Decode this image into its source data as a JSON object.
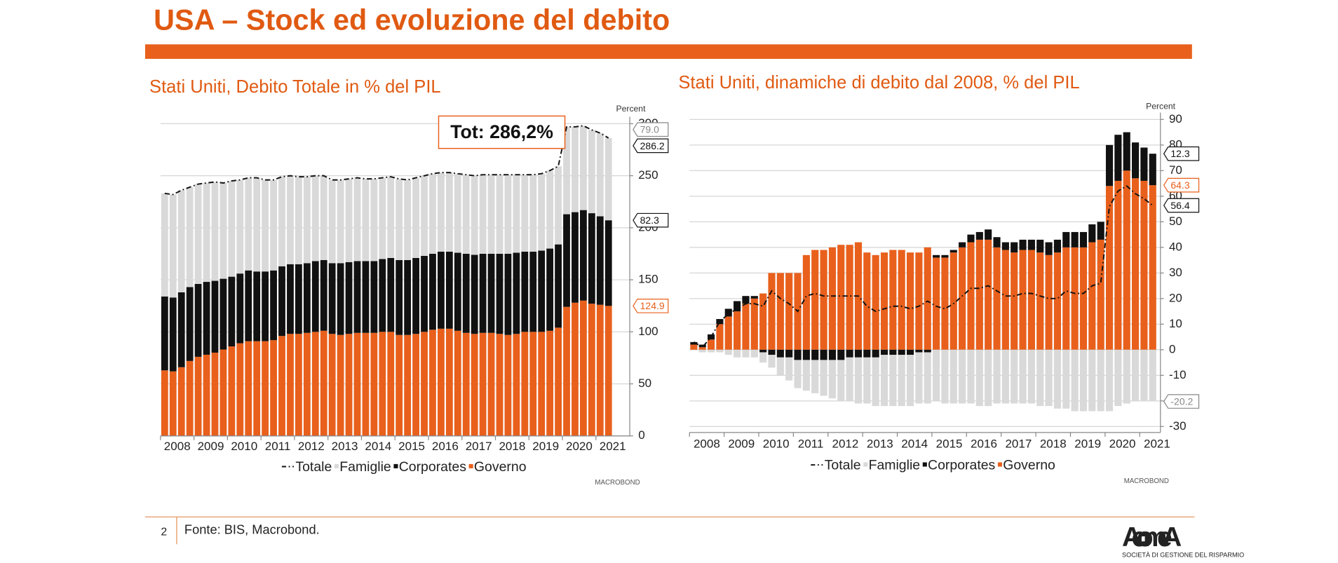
{
  "header": {
    "title": "USA – Stock ed evoluzione del debito"
  },
  "chart_data": [
    {
      "type": "bar",
      "stacked": true,
      "title": "Stati Uniti, Debito Totale in % del PIL",
      "y_axis_label": "Percent",
      "annotation": "Tot: 286,2%",
      "source_logo": "MACROBOND",
      "yaxis_side": "right",
      "grid": true,
      "categories": [
        null,
        "2008",
        null,
        null,
        null,
        "2009",
        null,
        null,
        null,
        "2010",
        null,
        null,
        null,
        "2011",
        null,
        null,
        null,
        "2012",
        null,
        null,
        null,
        "2013",
        null,
        null,
        null,
        "2014",
        null,
        null,
        null,
        "2015",
        null,
        null,
        null,
        "2016",
        null,
        null,
        null,
        "2017",
        null,
        null,
        null,
        "2018",
        null,
        null,
        null,
        "2019",
        null,
        null,
        null,
        "2020",
        null,
        null,
        null,
        "2021"
      ],
      "ylim": [
        0,
        300
      ],
      "yticks": [
        0,
        50,
        100,
        150,
        200,
        250,
        300
      ],
      "series": [
        {
          "name": "Totale",
          "type": "line",
          "color": "#111111",
          "values": [
            233,
            232,
            236,
            239,
            242,
            243,
            244,
            243,
            245,
            246,
            248,
            248,
            246,
            246,
            249,
            250,
            249,
            249,
            250,
            250,
            246,
            246,
            247,
            248,
            247,
            247,
            248,
            249,
            247,
            246,
            248,
            250,
            252,
            253,
            253,
            252,
            251,
            250,
            251,
            251,
            251,
            251,
            251,
            251,
            251,
            252,
            255,
            259,
            297,
            297,
            298,
            294,
            291,
            286.2
          ],
          "value_labels": [
            null,
            null,
            null,
            null,
            null,
            null,
            null,
            null,
            null,
            null,
            null,
            null,
            null,
            null,
            null,
            null,
            null,
            null,
            null,
            null,
            null,
            null,
            null,
            null,
            null,
            null,
            null,
            null,
            null,
            null,
            null,
            null,
            null,
            null,
            null,
            null,
            null,
            null,
            null,
            null,
            null,
            null,
            null,
            null,
            null,
            null,
            null,
            null,
            null,
            null,
            null,
            null,
            null,
            "286.2"
          ]
        },
        {
          "name": "Famiglie",
          "color": "#d9d9d9",
          "values": [
            99,
            99,
            98,
            96,
            96,
            95,
            95,
            92,
            92,
            90,
            89,
            90,
            88,
            87,
            86,
            85,
            84,
            83,
            82,
            81,
            80,
            80,
            80,
            80,
            79,
            79,
            78,
            78,
            78,
            77,
            77,
            77,
            77,
            76,
            76,
            76,
            76,
            76,
            76,
            76,
            76,
            76,
            75,
            74,
            74,
            74,
            75,
            75,
            84,
            82,
            81,
            80,
            80,
            79.0
          ],
          "value_labels": [
            null,
            null,
            null,
            null,
            null,
            null,
            null,
            null,
            null,
            null,
            null,
            null,
            null,
            null,
            null,
            null,
            null,
            null,
            null,
            null,
            null,
            null,
            null,
            null,
            null,
            null,
            null,
            null,
            null,
            null,
            null,
            null,
            null,
            null,
            null,
            null,
            null,
            null,
            null,
            null,
            null,
            null,
            null,
            null,
            null,
            null,
            null,
            null,
            null,
            null,
            null,
            null,
            null,
            "79.0"
          ]
        },
        {
          "name": "Corporates",
          "color": "#111111",
          "values": [
            71,
            71,
            72,
            71,
            70,
            70,
            69,
            68,
            67,
            67,
            68,
            67,
            67,
            67,
            67,
            67,
            67,
            67,
            68,
            68,
            68,
            69,
            69,
            69,
            69,
            69,
            70,
            71,
            72,
            72,
            73,
            73,
            73,
            74,
            74,
            75,
            76,
            76,
            76,
            76,
            77,
            78,
            78,
            77,
            77,
            78,
            79,
            80,
            89,
            87,
            87,
            87,
            85,
            82.3
          ],
          "value_labels": [
            null,
            null,
            null,
            null,
            null,
            null,
            null,
            null,
            null,
            null,
            null,
            null,
            null,
            null,
            null,
            null,
            null,
            null,
            null,
            null,
            null,
            null,
            null,
            null,
            null,
            null,
            null,
            null,
            null,
            null,
            null,
            null,
            null,
            null,
            null,
            null,
            null,
            null,
            null,
            null,
            null,
            null,
            null,
            null,
            null,
            null,
            null,
            null,
            null,
            null,
            null,
            null,
            null,
            "82.3"
          ]
        },
        {
          "name": "Governo",
          "color": "#e8601c",
          "values": [
            63,
            62,
            66,
            72,
            76,
            78,
            80,
            83,
            86,
            89,
            91,
            91,
            91,
            92,
            96,
            98,
            98,
            99,
            100,
            101,
            98,
            97,
            98,
            99,
            99,
            99,
            100,
            100,
            97,
            97,
            98,
            100,
            102,
            103,
            103,
            101,
            99,
            98,
            99,
            99,
            98,
            97,
            98,
            100,
            100,
            100,
            101,
            104,
            124,
            128,
            130,
            127,
            126,
            124.9
          ],
          "value_labels": [
            null,
            null,
            null,
            null,
            null,
            null,
            null,
            null,
            null,
            null,
            null,
            null,
            null,
            null,
            null,
            null,
            null,
            null,
            null,
            null,
            null,
            null,
            null,
            null,
            null,
            null,
            null,
            null,
            null,
            null,
            null,
            null,
            null,
            null,
            null,
            null,
            null,
            null,
            null,
            null,
            null,
            null,
            null,
            null,
            null,
            null,
            null,
            null,
            null,
            null,
            null,
            null,
            null,
            "124.9"
          ]
        }
      ]
    },
    {
      "type": "bar",
      "stacked": true,
      "title": "Stati Uniti, dinamiche di debito dal 2008, % del PIL",
      "y_axis_label": "Percent",
      "source_logo": "MACROBOND",
      "yaxis_side": "right",
      "grid": true,
      "categories": [
        null,
        "2008",
        null,
        null,
        null,
        "2009",
        null,
        null,
        null,
        "2010",
        null,
        null,
        null,
        "2011",
        null,
        null,
        null,
        "2012",
        null,
        null,
        null,
        "2013",
        null,
        null,
        null,
        "2014",
        null,
        null,
        null,
        "2015",
        null,
        null,
        null,
        "2016",
        null,
        null,
        null,
        "2017",
        null,
        null,
        null,
        "2018",
        null,
        null,
        null,
        "2019",
        null,
        null,
        null,
        "2020",
        null,
        null,
        null,
        "2021"
      ],
      "ylim": [
        -30,
        90
      ],
      "yticks": [
        -30,
        -20,
        -10,
        0,
        10,
        20,
        30,
        40,
        50,
        60,
        70,
        80,
        90
      ],
      "series": [
        {
          "name": "Totale",
          "type": "line",
          "color": "#111111",
          "values": [
            3,
            1,
            5,
            11,
            14,
            16,
            18,
            18,
            17,
            23,
            20,
            18,
            15,
            21,
            22,
            21,
            21,
            21,
            21,
            21,
            17,
            15,
            16,
            17,
            17,
            16,
            17,
            19,
            17,
            16,
            18,
            21,
            24,
            24,
            25,
            23,
            21,
            21,
            22,
            22,
            21,
            20,
            20,
            23,
            22,
            22,
            25,
            26,
            56,
            62,
            64,
            61,
            59,
            56.4
          ],
          "value_labels": [
            null,
            null,
            null,
            null,
            null,
            null,
            null,
            null,
            null,
            null,
            null,
            null,
            null,
            null,
            null,
            null,
            null,
            null,
            null,
            null,
            null,
            null,
            null,
            null,
            null,
            null,
            null,
            null,
            null,
            null,
            null,
            null,
            null,
            null,
            null,
            null,
            null,
            null,
            null,
            null,
            null,
            null,
            null,
            null,
            null,
            null,
            null,
            null,
            null,
            null,
            null,
            null,
            null,
            "56.4"
          ]
        },
        {
          "name": "Famiglie",
          "color": "#d9d9d9",
          "values": [
            0,
            -1,
            -1,
            -1,
            -2,
            -3,
            -3,
            -3,
            -4,
            -5,
            -7,
            -9,
            -11,
            -12,
            -13,
            -14,
            -15,
            -16,
            -17,
            -18,
            -18,
            -19,
            -20,
            -20,
            -20,
            -20,
            -20,
            -20,
            -20,
            -21,
            -21,
            -21,
            -21,
            -22,
            -22,
            -21,
            -21,
            -21,
            -21,
            -21,
            -22,
            -22,
            -23,
            -23,
            -24,
            -24,
            -24,
            -24,
            -24,
            -22,
            -21,
            -20,
            -20,
            -20.2
          ],
          "value_labels": [
            null,
            null,
            null,
            null,
            null,
            null,
            null,
            null,
            null,
            null,
            null,
            null,
            null,
            null,
            null,
            null,
            null,
            null,
            null,
            null,
            null,
            null,
            null,
            null,
            null,
            null,
            null,
            null,
            null,
            null,
            null,
            null,
            null,
            null,
            null,
            null,
            null,
            null,
            null,
            null,
            null,
            null,
            null,
            null,
            null,
            null,
            null,
            null,
            null,
            null,
            null,
            null,
            null,
            "-20.2"
          ]
        },
        {
          "name": "Corporates",
          "color": "#111111",
          "values": [
            1,
            1,
            2,
            2,
            3,
            4,
            3,
            1,
            -1,
            -2,
            -3,
            -3,
            -4,
            -4,
            -4,
            -4,
            -4,
            -4,
            -3,
            -3,
            -3,
            -3,
            -2,
            -2,
            -2,
            -2,
            -1,
            -1,
            1,
            1,
            1,
            2,
            3,
            3,
            4,
            4,
            3,
            4,
            4,
            4,
            5,
            5,
            5,
            6,
            6,
            6,
            7,
            7,
            16,
            18,
            15,
            14,
            13,
            12.3
          ],
          "value_labels": [
            null,
            null,
            null,
            null,
            null,
            null,
            null,
            null,
            null,
            null,
            null,
            null,
            null,
            null,
            null,
            null,
            null,
            null,
            null,
            null,
            null,
            null,
            null,
            null,
            null,
            null,
            null,
            null,
            null,
            null,
            null,
            null,
            null,
            null,
            null,
            null,
            null,
            null,
            null,
            null,
            null,
            null,
            null,
            null,
            null,
            null,
            null,
            null,
            null,
            null,
            null,
            null,
            null,
            "12.3"
          ]
        },
        {
          "name": "Governo",
          "color": "#e8601c",
          "values": [
            2,
            1,
            4,
            10,
            13,
            15,
            18,
            20,
            22,
            30,
            30,
            30,
            30,
            37,
            39,
            39,
            40,
            41,
            41,
            42,
            38,
            37,
            38,
            39,
            39,
            38,
            38,
            40,
            36,
            36,
            38,
            40,
            42,
            43,
            43,
            40,
            39,
            38,
            39,
            39,
            38,
            37,
            38,
            40,
            40,
            40,
            42,
            43,
            64,
            66,
            70,
            67,
            66,
            64.3
          ],
          "value_labels": [
            null,
            null,
            null,
            null,
            null,
            null,
            null,
            null,
            null,
            null,
            null,
            null,
            null,
            null,
            null,
            null,
            null,
            null,
            null,
            null,
            null,
            null,
            null,
            null,
            null,
            null,
            null,
            null,
            null,
            null,
            null,
            null,
            null,
            null,
            null,
            null,
            null,
            null,
            null,
            null,
            null,
            null,
            null,
            null,
            null,
            null,
            null,
            null,
            null,
            null,
            null,
            null,
            null,
            "64.3"
          ]
        }
      ]
    }
  ],
  "footer": {
    "page_number": "2",
    "source": "Fonte: BIS, Macrobond.",
    "logo": "AcomeA",
    "logo_tagline": "SOCIETÀ DI GESTIONE DEL RISPARMIO"
  }
}
